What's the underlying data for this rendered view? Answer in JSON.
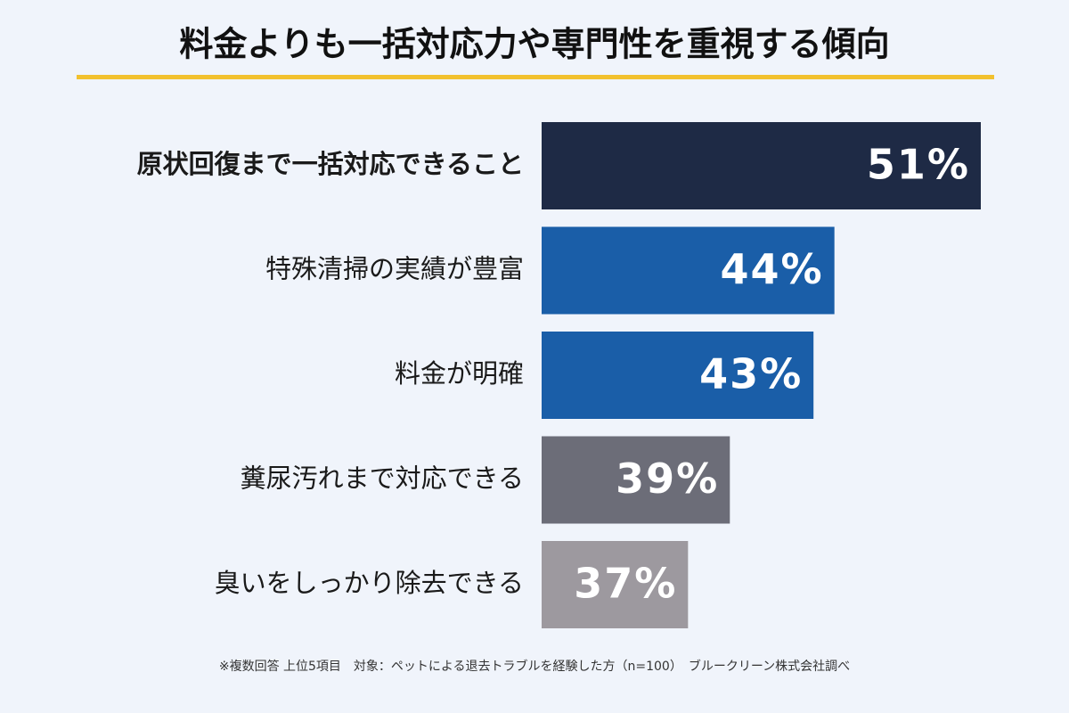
{
  "chart_data": {
    "type": "hbar",
    "title": "料金よりも一括対応力や専門性を重視する傾向",
    "categories": [
      "原状回復まで一括対応できること",
      "特殊清掃の実績が豊富",
      "料金が明確",
      "糞尿汚れまで対応できる",
      "臭いをしっかり除去できる"
    ],
    "values": [
      51,
      44,
      43,
      39,
      37
    ],
    "value_labels": [
      "51%",
      "44%",
      "43%",
      "39%",
      "37%"
    ],
    "colors": [
      "#1e2a45",
      "#1a5ea8",
      "#1a5ea8",
      "#6c6d78",
      "#9d999f"
    ],
    "xlim": [
      30,
      51
    ],
    "footnote": "※複数回答 上位5項目　対象：ペットによる退去トラブルを経験した方（n=100）　ブルークリーン株式会社調べ"
  }
}
